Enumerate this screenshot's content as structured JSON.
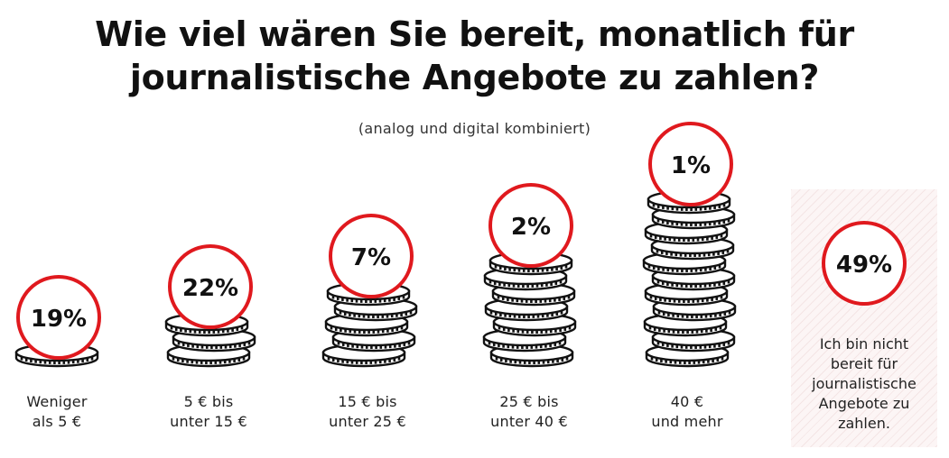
{
  "title_lines": [
    "Wie viel wären Sie bereit, monatlich für",
    "journalistische Angebote zu zahlen?"
  ],
  "subtitle": "(analog und digital kombiniert)",
  "colors": {
    "accent": "#e0191e",
    "coin": "#111111",
    "panel": "#fcf5f5"
  },
  "chart_data": {
    "type": "bar",
    "title": "Wie viel wären Sie bereit, monatlich für journalistische Angebote zu zahlen?",
    "subtitle": "(analog und digital kombiniert)",
    "unit": "%",
    "categories": [
      "Weniger als 5 €",
      "5 € bis unter 15 €",
      "15 € bis unter 25 €",
      "25 € bis unter 40 €",
      "40 € und mehr",
      "Ich bin nicht bereit für journalistische Angebote zu zahlen."
    ],
    "values": [
      19,
      22,
      7,
      2,
      1,
      49
    ],
    "value_labels": [
      "19%",
      "22%",
      "7%",
      "2%",
      "1%",
      "49%"
    ],
    "caption_lines": [
      [
        "Weniger",
        "als 5 €"
      ],
      [
        "5 € bis",
        "unter 15 €"
      ],
      [
        "15 € bis",
        "unter 25 €"
      ],
      [
        "25 € bis",
        "unter 40 €"
      ],
      [
        "40 €",
        "und mehr"
      ],
      [
        "Ich bin nicht",
        "bereit für",
        "journalistische",
        "Angebote zu",
        "zahlen."
      ]
    ]
  }
}
